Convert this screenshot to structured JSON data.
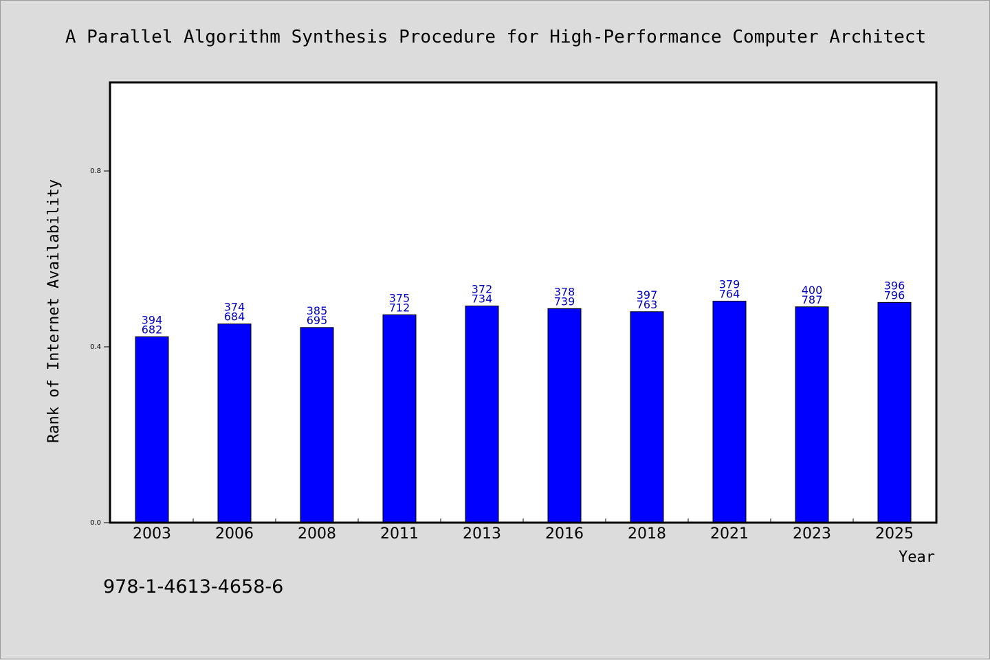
{
  "chart_data": {
    "type": "bar",
    "title": "A Parallel Algorithm Synthesis Procedure for High-Performance Computer Architect",
    "xlabel": "Year",
    "ylabel": "Rank of Internet Availability",
    "ylim": [
      0.0,
      1.0
    ],
    "yticks": [
      {
        "value": 0.0,
        "label": "0.0"
      },
      {
        "value": 0.4,
        "label": "0.4"
      },
      {
        "value": 0.8,
        "label": "0.8"
      }
    ],
    "categories": [
      "2003",
      "2006",
      "2008",
      "2011",
      "2013",
      "2016",
      "2018",
      "2021",
      "2023",
      "2025"
    ],
    "values": [
      0.423,
      0.452,
      0.444,
      0.473,
      0.493,
      0.487,
      0.48,
      0.504,
      0.491,
      0.501
    ],
    "bar_labels_top": [
      "394",
      "374",
      "385",
      "375",
      "372",
      "378",
      "397",
      "379",
      "400",
      "396"
    ],
    "bar_labels_bottom": [
      "682",
      "684",
      "695",
      "712",
      "734",
      "739",
      "763",
      "764",
      "787",
      "796"
    ],
    "bar_color": "#0000ff",
    "label_color": "#0000cc",
    "grid": false,
    "legend": "none"
  },
  "footer": {
    "isbn": "978-1-4613-4658-6"
  }
}
